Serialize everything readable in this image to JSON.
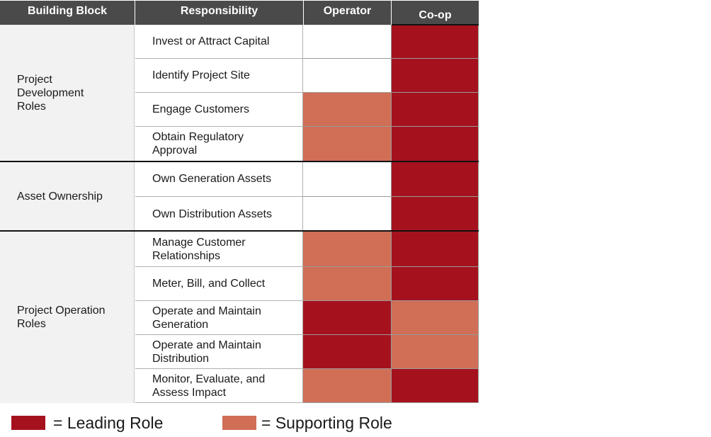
{
  "header": {
    "building_block": "Building Block",
    "responsibility": "Responsibility",
    "operator": "Operator",
    "coop": "Co-op"
  },
  "colors": {
    "leading": "#a5121e",
    "supporting": "#d06e56",
    "none": "#ffffff"
  },
  "blocks": [
    {
      "label": "Project\nDevelopment\nRoles"
    },
    {
      "label": "Asset Ownership"
    },
    {
      "label": "Project Operation\nRoles"
    }
  ],
  "rows": [
    {
      "responsibility": "Invest or Attract Capital",
      "operator": "none",
      "coop": "leading"
    },
    {
      "responsibility": "Identify Project Site",
      "operator": "none",
      "coop": "leading"
    },
    {
      "responsibility": "Engage Customers",
      "operator": "supporting",
      "coop": "leading"
    },
    {
      "responsibility": "Obtain Regulatory\nApproval",
      "operator": "supporting",
      "coop": "leading"
    },
    {
      "responsibility": "Own Generation Assets",
      "operator": "none",
      "coop": "leading"
    },
    {
      "responsibility": "Own Distribution Assets",
      "operator": "none",
      "coop": "leading"
    },
    {
      "responsibility": "Manage Customer\nRelationships",
      "operator": "supporting",
      "coop": "leading"
    },
    {
      "responsibility": "Meter, Bill, and Collect",
      "operator": "supporting",
      "coop": "leading"
    },
    {
      "responsibility": "Operate and Maintain\nGeneration",
      "operator": "leading",
      "coop": "supporting"
    },
    {
      "responsibility": "Operate and Maintain\nDistribution",
      "operator": "leading",
      "coop": "supporting"
    },
    {
      "responsibility": "Monitor, Evaluate, and\nAssess Impact",
      "operator": "supporting",
      "coop": "leading"
    }
  ],
  "legend": {
    "leading_label": "= Leading Role",
    "supporting_label": "= Supporting Role"
  }
}
